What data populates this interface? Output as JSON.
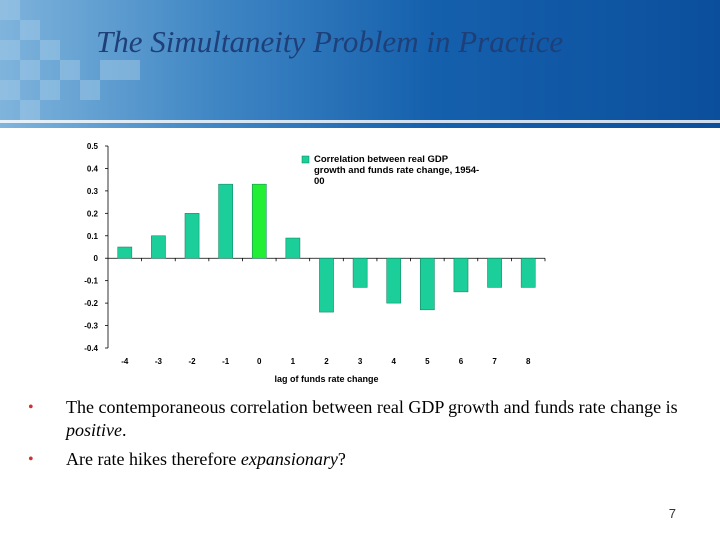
{
  "slide": {
    "title": "The Simultaneity Problem in Practice",
    "page_number": "7",
    "bullets": [
      {
        "pre": "The contemporaneous correlation between real GDP growth and funds rate change is ",
        "em": "positive",
        "post": "."
      },
      {
        "pre": "Are rate hikes therefore ",
        "em": "expansionary",
        "post": "?"
      }
    ]
  },
  "chart_data": {
    "type": "bar",
    "categories": [
      "-4",
      "-3",
      "-2",
      "-1",
      "0",
      "1",
      "2",
      "3",
      "4",
      "5",
      "6",
      "7",
      "8"
    ],
    "series": [
      {
        "name": "Correlation between real GDP growth and funds rate change, 1954-00",
        "values": [
          0.05,
          0.1,
          0.2,
          0.33,
          0.33,
          0.09,
          -0.24,
          -0.13,
          -0.2,
          -0.23,
          -0.15,
          -0.13,
          -0.13
        ]
      }
    ],
    "highlight_category": "0",
    "colors": {
      "bar": "#1ccf9a",
      "highlight": "#22ee33",
      "bar_stroke": "#0a7a55"
    },
    "xlabel": "lag of funds rate change",
    "ylabel": "",
    "ylim": [
      -0.4,
      0.5
    ],
    "yticks": [
      "0.5",
      "0.4",
      "0.3",
      "0.2",
      "0.1",
      "0",
      "-0.1",
      "-0.2",
      "-0.3",
      "-0.4"
    ],
    "legend": {
      "position": "top-right",
      "lines": [
        "Correlation between real GDP",
        "growth and funds rate change, 1954-",
        "00"
      ]
    },
    "grid": false
  }
}
